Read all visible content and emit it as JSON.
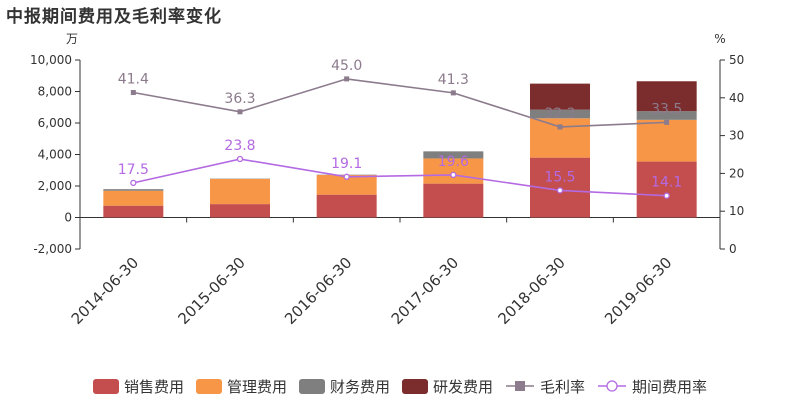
{
  "title": "中报期间费用及毛利率变化",
  "chart_data": {
    "type": "bar",
    "categories": [
      "2014-06-30",
      "2015-06-30",
      "2016-06-30",
      "2017-06-30",
      "2018-06-30",
      "2019-06-30"
    ],
    "y_left_unit": "万",
    "y_right_unit": "%",
    "y_left_range": [
      -2000,
      10000
    ],
    "y_left_ticks": [
      -2000,
      0,
      2000,
      4000,
      6000,
      8000,
      10000
    ],
    "y_left_tick_labels": [
      "-2,000",
      "0",
      "2,000",
      "4,000",
      "6,000",
      "8,000",
      "10,000"
    ],
    "y_right_range": [
      0,
      50
    ],
    "y_right_ticks": [
      0,
      10,
      20,
      30,
      40,
      50
    ],
    "y_right_tick_labels": [
      "0",
      "10",
      "20",
      "30",
      "40",
      "50"
    ],
    "stacked": true,
    "series": [
      {
        "name": "销售费用",
        "type": "bar",
        "axis": "left",
        "color": "#c44e4e",
        "values": [
          750,
          850,
          1450,
          2150,
          3800,
          3550
        ]
      },
      {
        "name": "管理费用",
        "type": "bar",
        "axis": "left",
        "color": "#f79646",
        "values": [
          950,
          1600,
          1250,
          1600,
          2500,
          2650
        ]
      },
      {
        "name": "财务费用",
        "type": "bar",
        "axis": "left",
        "color": "#7f7f7f",
        "values": [
          100,
          20,
          20,
          450,
          550,
          550
        ]
      },
      {
        "name": "研发费用",
        "type": "bar",
        "axis": "left",
        "color": "#7b2c2c",
        "values": [
          0,
          0,
          0,
          0,
          1650,
          1900
        ]
      },
      {
        "name": "毛利率",
        "type": "line",
        "axis": "right",
        "color": "#8c7b8c",
        "marker": "square",
        "values": [
          41.4,
          36.3,
          45.0,
          41.3,
          32.3,
          33.5
        ],
        "labels": [
          "41.4",
          "36.3",
          "45.0",
          "41.3",
          "32.3",
          "33.5"
        ]
      },
      {
        "name": "期间费用率",
        "type": "line",
        "axis": "right",
        "color": "#b36ae2",
        "marker": "circle",
        "values": [
          17.5,
          23.8,
          19.1,
          19.6,
          15.5,
          14.1
        ],
        "labels": [
          "17.5",
          "23.8",
          "19.1",
          "19.6",
          "15.5",
          "14.1"
        ]
      }
    ],
    "legend_position": "bottom"
  }
}
